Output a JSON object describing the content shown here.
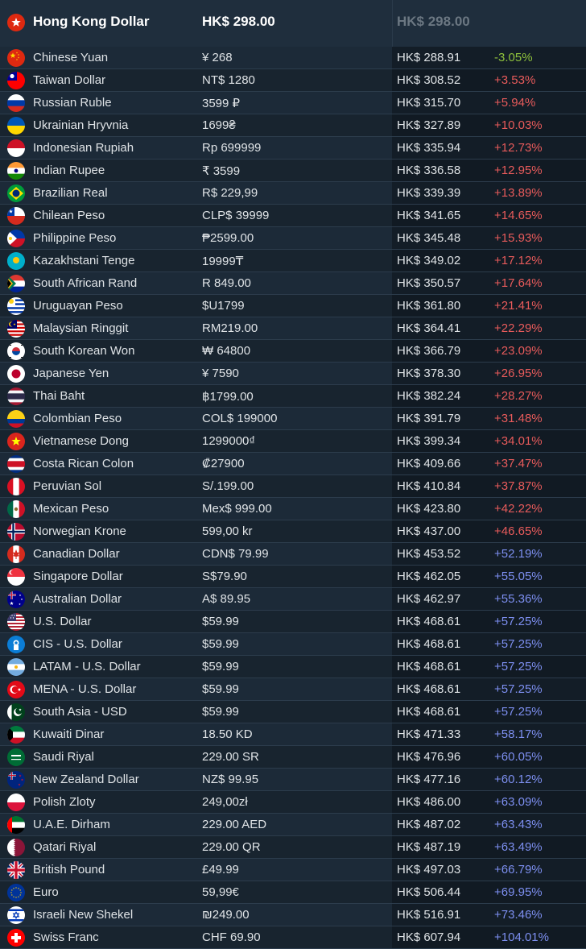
{
  "header": {
    "flag": "hk",
    "currency_name": "Hong Kong Dollar",
    "price": "HK$ 298.00",
    "converted": "HK$ 298.00"
  },
  "colors": {
    "negative": "#8fc23c",
    "moderate": "#e85b5b",
    "high": "#7d8ff0"
  },
  "rows": [
    {
      "flag": "cn",
      "name": "Chinese Yuan",
      "price": "¥ 268",
      "converted": "HK$ 288.91",
      "diff": "-3.05%",
      "tone": "neg"
    },
    {
      "flag": "tw",
      "name": "Taiwan Dollar",
      "price": "NT$ 1280",
      "converted": "HK$ 308.52",
      "diff": "+3.53%",
      "tone": "mid"
    },
    {
      "flag": "ru",
      "name": "Russian Ruble",
      "price": "3599 ₽",
      "converted": "HK$ 315.70",
      "diff": "+5.94%",
      "tone": "mid"
    },
    {
      "flag": "ua",
      "name": "Ukrainian Hryvnia",
      "price": "1699₴",
      "converted": "HK$ 327.89",
      "diff": "+10.03%",
      "tone": "mid"
    },
    {
      "flag": "id",
      "name": "Indonesian Rupiah",
      "price": "Rp 699999",
      "converted": "HK$ 335.94",
      "diff": "+12.73%",
      "tone": "mid"
    },
    {
      "flag": "in",
      "name": "Indian Rupee",
      "price": "₹ 3599",
      "converted": "HK$ 336.58",
      "diff": "+12.95%",
      "tone": "mid"
    },
    {
      "flag": "br",
      "name": "Brazilian Real",
      "price": "R$ 229,99",
      "converted": "HK$ 339.39",
      "diff": "+13.89%",
      "tone": "mid"
    },
    {
      "flag": "cl",
      "name": "Chilean Peso",
      "price": "CLP$ 39999",
      "converted": "HK$ 341.65",
      "diff": "+14.65%",
      "tone": "mid"
    },
    {
      "flag": "ph",
      "name": "Philippine Peso",
      "price": "₱2599.00",
      "converted": "HK$ 345.48",
      "diff": "+15.93%",
      "tone": "mid"
    },
    {
      "flag": "kz",
      "name": "Kazakhstani Tenge",
      "price": "19999₸",
      "converted": "HK$ 349.02",
      "diff": "+17.12%",
      "tone": "mid"
    },
    {
      "flag": "za",
      "name": "South African Rand",
      "price": "R 849.00",
      "converted": "HK$ 350.57",
      "diff": "+17.64%",
      "tone": "mid"
    },
    {
      "flag": "uy",
      "name": "Uruguayan Peso",
      "price": "$U1799",
      "converted": "HK$ 361.80",
      "diff": "+21.41%",
      "tone": "mid"
    },
    {
      "flag": "my",
      "name": "Malaysian Ringgit",
      "price": "RM219.00",
      "converted": "HK$ 364.41",
      "diff": "+22.29%",
      "tone": "mid"
    },
    {
      "flag": "kr",
      "name": "South Korean Won",
      "price": "₩ 64800",
      "converted": "HK$ 366.79",
      "diff": "+23.09%",
      "tone": "mid"
    },
    {
      "flag": "jp",
      "name": "Japanese Yen",
      "price": "¥ 7590",
      "converted": "HK$ 378.30",
      "diff": "+26.95%",
      "tone": "mid"
    },
    {
      "flag": "th",
      "name": "Thai Baht",
      "price": "฿1799.00",
      "converted": "HK$ 382.24",
      "diff": "+28.27%",
      "tone": "mid"
    },
    {
      "flag": "co",
      "name": "Colombian Peso",
      "price": "COL$ 199000",
      "converted": "HK$ 391.79",
      "diff": "+31.48%",
      "tone": "mid"
    },
    {
      "flag": "vn",
      "name": "Vietnamese Dong",
      "price": "1299000₫",
      "converted": "HK$ 399.34",
      "diff": "+34.01%",
      "tone": "mid"
    },
    {
      "flag": "cr",
      "name": "Costa Rican Colon",
      "price": "₡27900",
      "converted": "HK$ 409.66",
      "diff": "+37.47%",
      "tone": "mid"
    },
    {
      "flag": "pe",
      "name": "Peruvian Sol",
      "price": "S/.199.00",
      "converted": "HK$ 410.84",
      "diff": "+37.87%",
      "tone": "mid"
    },
    {
      "flag": "mx",
      "name": "Mexican Peso",
      "price": "Mex$ 999.00",
      "converted": "HK$ 423.80",
      "diff": "+42.22%",
      "tone": "mid"
    },
    {
      "flag": "no",
      "name": "Norwegian Krone",
      "price": "599,00 kr",
      "converted": "HK$ 437.00",
      "diff": "+46.65%",
      "tone": "mid"
    },
    {
      "flag": "ca",
      "name": "Canadian Dollar",
      "price": "CDN$ 79.99",
      "converted": "HK$ 453.52",
      "diff": "+52.19%",
      "tone": "high"
    },
    {
      "flag": "sg",
      "name": "Singapore Dollar",
      "price": "S$79.90",
      "converted": "HK$ 462.05",
      "diff": "+55.05%",
      "tone": "high"
    },
    {
      "flag": "au",
      "name": "Australian Dollar",
      "price": "A$ 89.95",
      "converted": "HK$ 462.97",
      "diff": "+55.36%",
      "tone": "high"
    },
    {
      "flag": "us",
      "name": "U.S. Dollar",
      "price": "$59.99",
      "converted": "HK$ 468.61",
      "diff": "+57.25%",
      "tone": "high"
    },
    {
      "flag": "cis",
      "name": "CIS - U.S. Dollar",
      "price": "$59.99",
      "converted": "HK$ 468.61",
      "diff": "+57.25%",
      "tone": "high"
    },
    {
      "flag": "ar",
      "name": "LATAM - U.S. Dollar",
      "price": "$59.99",
      "converted": "HK$ 468.61",
      "diff": "+57.25%",
      "tone": "high"
    },
    {
      "flag": "tr",
      "name": "MENA - U.S. Dollar",
      "price": "$59.99",
      "converted": "HK$ 468.61",
      "diff": "+57.25%",
      "tone": "high"
    },
    {
      "flag": "pk",
      "name": "South Asia - USD",
      "price": "$59.99",
      "converted": "HK$ 468.61",
      "diff": "+57.25%",
      "tone": "high"
    },
    {
      "flag": "kw",
      "name": "Kuwaiti Dinar",
      "price": "18.50 KD",
      "converted": "HK$ 471.33",
      "diff": "+58.17%",
      "tone": "high"
    },
    {
      "flag": "sa",
      "name": "Saudi Riyal",
      "price": "229.00 SR",
      "converted": "HK$ 476.96",
      "diff": "+60.05%",
      "tone": "high"
    },
    {
      "flag": "nz",
      "name": "New Zealand Dollar",
      "price": "NZ$ 99.95",
      "converted": "HK$ 477.16",
      "diff": "+60.12%",
      "tone": "high"
    },
    {
      "flag": "pl",
      "name": "Polish Zloty",
      "price": "249,00zł",
      "converted": "HK$ 486.00",
      "diff": "+63.09%",
      "tone": "high"
    },
    {
      "flag": "ae",
      "name": "U.A.E. Dirham",
      "price": "229.00 AED",
      "converted": "HK$ 487.02",
      "diff": "+63.43%",
      "tone": "high"
    },
    {
      "flag": "qa",
      "name": "Qatari Riyal",
      "price": "229.00 QR",
      "converted": "HK$ 487.19",
      "diff": "+63.49%",
      "tone": "high"
    },
    {
      "flag": "gb",
      "name": "British Pound",
      "price": "£49.99",
      "converted": "HK$ 497.03",
      "diff": "+66.79%",
      "tone": "high"
    },
    {
      "flag": "eu",
      "name": "Euro",
      "price": "59,99€",
      "converted": "HK$ 506.44",
      "diff": "+69.95%",
      "tone": "high"
    },
    {
      "flag": "il",
      "name": "Israeli New Shekel",
      "price": "₪249.00",
      "converted": "HK$ 516.91",
      "diff": "+73.46%",
      "tone": "high"
    },
    {
      "flag": "ch",
      "name": "Swiss Franc",
      "price": "CHF 69.90",
      "converted": "HK$ 607.94",
      "diff": "+104.01%",
      "tone": "high"
    }
  ]
}
